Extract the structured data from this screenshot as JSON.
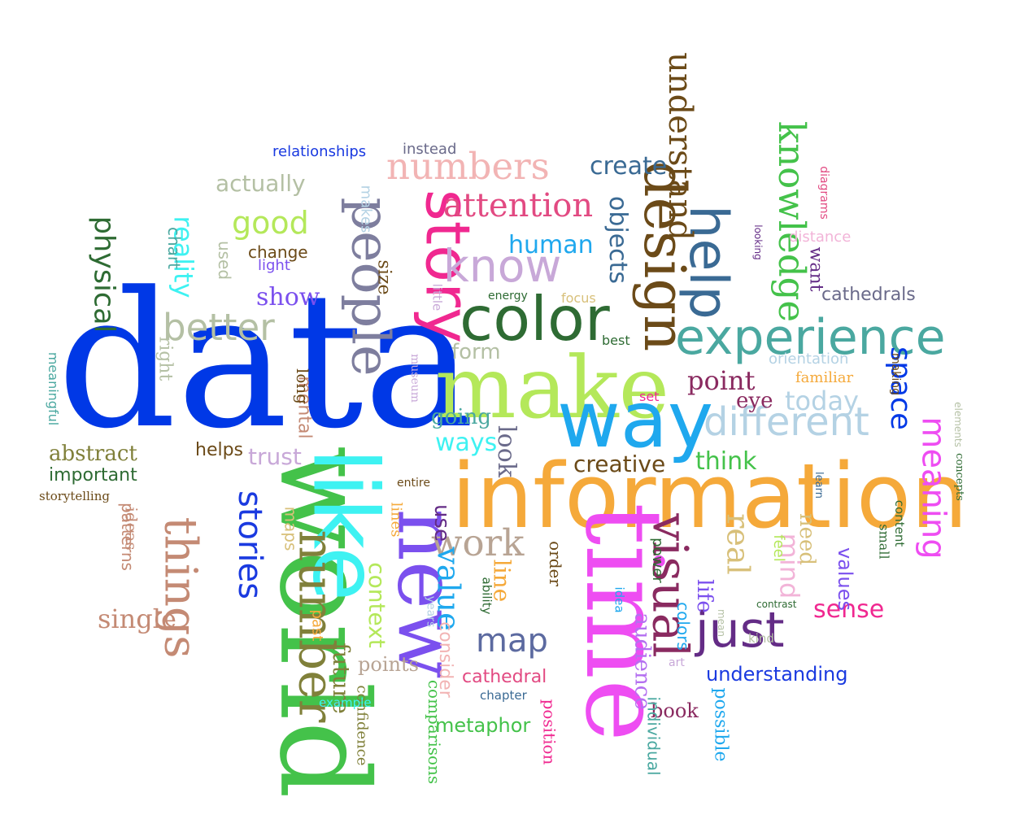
{
  "words": [
    {
      "text": "data",
      "color": "#0038e6",
      "font": "serif"
    },
    {
      "text": "world",
      "color": "#44c24a",
      "font": "serif"
    },
    {
      "text": "information",
      "color": "#f5a93a",
      "font": "sans"
    },
    {
      "text": "time",
      "color": "#ee4df2",
      "font": "serif"
    },
    {
      "text": "like",
      "color": "#3ef2f2",
      "font": "sans"
    },
    {
      "text": "new",
      "color": "#7b50ee",
      "font": "serif"
    },
    {
      "text": "make",
      "color": "#b4e85a",
      "font": "serif"
    },
    {
      "text": "way",
      "color": "#1fa8ee",
      "font": "sans"
    },
    {
      "text": "color",
      "color": "#2e6b33",
      "font": "sans"
    },
    {
      "text": "story",
      "color": "#f02890",
      "font": "sans"
    },
    {
      "text": "people",
      "color": "#7e7e9e",
      "font": "serif"
    },
    {
      "text": "number",
      "color": "#80803a",
      "font": "serif"
    },
    {
      "text": "things",
      "color": "#c48a74",
      "font": "serif"
    },
    {
      "text": "design",
      "color": "#6b4a18",
      "font": "serif"
    },
    {
      "text": "help",
      "color": "#3a6a94",
      "font": "sans"
    },
    {
      "text": "experience",
      "color": "#4aa8a0",
      "font": "sans"
    },
    {
      "text": "visual",
      "color": "#8a2a60",
      "font": "serif"
    },
    {
      "text": "just",
      "color": "#642c86",
      "font": "sans"
    },
    {
      "text": "know",
      "color": "#c8a8d8",
      "font": "sans"
    },
    {
      "text": "numbers",
      "color": "#f2b4b4",
      "font": "serif"
    },
    {
      "text": "different",
      "color": "#b4d2e4",
      "font": "sans"
    },
    {
      "text": "knowledge",
      "color": "#44c24a",
      "font": "serif"
    },
    {
      "text": "understand",
      "color": "#6b4a18",
      "font": "serif"
    },
    {
      "text": "better",
      "color": "#b4c0a4",
      "font": "sans"
    },
    {
      "text": "attention",
      "color": "#e24a82",
      "font": "serif"
    },
    {
      "text": "meaning",
      "color": "#ee4df2",
      "font": "sans"
    },
    {
      "text": "stories",
      "color": "#1a3ae0",
      "font": "sans"
    },
    {
      "text": "real",
      "color": "#d8c07a",
      "font": "serif"
    },
    {
      "text": "work",
      "color": "#b8a494",
      "font": "serif"
    },
    {
      "text": "map",
      "color": "#5c6aa0",
      "font": "sans"
    },
    {
      "text": "value",
      "color": "#1fa8ee",
      "font": "serif"
    },
    {
      "text": "good",
      "color": "#b4e85a",
      "font": "sans"
    },
    {
      "text": "reality",
      "color": "#3ef2f2",
      "font": "sans"
    },
    {
      "text": "physical",
      "color": "#2e6b33",
      "font": "sans"
    },
    {
      "text": "mind",
      "color": "#f2b4d8",
      "font": "sans"
    },
    {
      "text": "single",
      "color": "#c48a74",
      "font": "serif"
    },
    {
      "text": "point",
      "color": "#8a2a60",
      "font": "serif"
    },
    {
      "text": "today",
      "color": "#b4d2e4",
      "font": "sans"
    },
    {
      "text": "space",
      "color": "#0038e6",
      "font": "sans"
    },
    {
      "text": "objects",
      "color": "#3a6a94",
      "font": "sans"
    },
    {
      "text": "create",
      "color": "#3a6a94",
      "font": "sans"
    },
    {
      "text": "human",
      "color": "#1fa8ee",
      "font": "sans"
    },
    {
      "text": "sense",
      "color": "#f02890",
      "font": "sans"
    },
    {
      "text": "look",
      "color": "#6a6a8a",
      "font": "serif"
    },
    {
      "text": "ways",
      "color": "#3ef2f2",
      "font": "sans"
    },
    {
      "text": "think",
      "color": "#44c24a",
      "font": "sans"
    },
    {
      "text": "line",
      "color": "#f5a93a",
      "font": "serif"
    },
    {
      "text": "context",
      "color": "#b4e85a",
      "font": "sans"
    },
    {
      "text": "future",
      "color": "#80803a",
      "font": "serif"
    },
    {
      "text": "creative",
      "color": "#6b4a18",
      "font": "sans"
    },
    {
      "text": "abstract",
      "color": "#80803a",
      "font": "serif"
    },
    {
      "text": "important",
      "color": "#2e6b33",
      "font": "sans"
    },
    {
      "text": "understanding",
      "color": "#1a3ae0",
      "font": "sans"
    },
    {
      "text": "audience",
      "color": "#b470f0",
      "font": "serif"
    },
    {
      "text": "book",
      "color": "#8a2a60",
      "font": "serif"
    },
    {
      "text": "metaphor",
      "color": "#44c24a",
      "font": "sans"
    },
    {
      "text": "cathedral",
      "color": "#e24a82",
      "font": "sans"
    },
    {
      "text": "points",
      "color": "#b8a494",
      "font": "serif"
    },
    {
      "text": "trust",
      "color": "#c8a8d8",
      "font": "sans"
    },
    {
      "text": "show",
      "color": "#7b50ee",
      "font": "serif"
    },
    {
      "text": "actually",
      "color": "#b4c0a4",
      "font": "sans"
    },
    {
      "text": "use",
      "color": "#642c86",
      "font": "sans"
    },
    {
      "text": "going",
      "color": "#4aa8a0",
      "font": "serif"
    },
    {
      "text": "form",
      "color": "#b4c0a4",
      "font": "sans"
    },
    {
      "text": "eye",
      "color": "#8a2a60",
      "font": "serif"
    },
    {
      "text": "life",
      "color": "#7b50ee",
      "font": "serif"
    },
    {
      "text": "need",
      "color": "#d8c07a",
      "font": "serif"
    },
    {
      "text": "values",
      "color": "#7b50ee",
      "font": "sans"
    },
    {
      "text": "cathedrals",
      "color": "#6a6a8a",
      "font": "sans"
    },
    {
      "text": "possible",
      "color": "#1fa8ee",
      "font": "serif"
    },
    {
      "text": "individual",
      "color": "#4aa8a0",
      "font": "sans"
    },
    {
      "text": "relationships",
      "color": "#1a3ae0",
      "font": "sans"
    },
    {
      "text": "instead",
      "color": "#6a6a8a",
      "font": "sans"
    },
    {
      "text": "helps",
      "color": "#6b4a18",
      "font": "sans"
    },
    {
      "text": "consider",
      "color": "#f2b4b4",
      "font": "sans"
    },
    {
      "text": "comparisons",
      "color": "#44c24a",
      "font": "serif"
    },
    {
      "text": "position",
      "color": "#f02890",
      "font": "serif"
    },
    {
      "text": "storytelling",
      "color": "#6b4a18",
      "font": "serif"
    },
    {
      "text": "distance",
      "color": "#f2b4d8",
      "font": "sans"
    },
    {
      "text": "orientation",
      "color": "#b4d2e4",
      "font": "sans"
    },
    {
      "text": "familiar",
      "color": "#f5a93a",
      "font": "serif"
    },
    {
      "text": "want",
      "color": "#642c86",
      "font": "serif"
    },
    {
      "text": "chart",
      "color": "#4aa8a0",
      "font": "sans"
    },
    {
      "text": "maps",
      "color": "#d8c07a",
      "font": "sans"
    },
    {
      "text": "order",
      "color": "#6b4a18",
      "font": "serif"
    },
    {
      "text": "size",
      "color": "#6b4a18",
      "font": "serif"
    },
    {
      "text": "colors",
      "color": "#1fa8ee",
      "font": "sans"
    },
    {
      "text": "mental",
      "color": "#c48a74",
      "font": "sans"
    },
    {
      "text": "patterns",
      "color": "#c48a74",
      "font": "sans"
    },
    {
      "text": "ideas",
      "color": "#c48a74",
      "font": "serif"
    },
    {
      "text": "confidence",
      "color": "#80803a",
      "font": "serif"
    },
    {
      "text": "change",
      "color": "#6b4a18",
      "font": "sans"
    },
    {
      "text": "light",
      "color": "#7b50ee",
      "font": "sans"
    },
    {
      "text": "used",
      "color": "#b4c0a4",
      "font": "sans"
    },
    {
      "text": "lines",
      "color": "#f5a93a",
      "font": "serif"
    },
    {
      "text": "past",
      "color": "#f5a93a",
      "font": "sans"
    },
    {
      "text": "chapter",
      "color": "#3a6a94",
      "font": "sans"
    },
    {
      "text": "example",
      "color": "#3ef2f2",
      "font": "sans"
    },
    {
      "text": "meaningful",
      "color": "#4aa8a0",
      "font": "sans"
    },
    {
      "text": "long",
      "color": "#6b4a18",
      "font": "serif"
    },
    {
      "text": "right",
      "color": "#b4c0a4",
      "font": "serif"
    },
    {
      "text": "power",
      "color": "#2e6b33",
      "font": "sans"
    },
    {
      "text": "feel",
      "color": "#b4e85a",
      "font": "sans"
    },
    {
      "text": "ability",
      "color": "#2e6b33",
      "font": "sans"
    },
    {
      "text": "energy",
      "color": "#2e6b33",
      "font": "sans"
    },
    {
      "text": "focus",
      "color": "#d8c07a",
      "font": "sans"
    },
    {
      "text": "best",
      "color": "#2e6b33",
      "font": "sans"
    },
    {
      "text": "set",
      "color": "#f02890",
      "font": "sans"
    },
    {
      "text": "little",
      "color": "#c8a8d8",
      "font": "sans"
    },
    {
      "text": "museum",
      "color": "#c8a8d8",
      "font": "serif"
    },
    {
      "text": "makes",
      "color": "#b4d2e4",
      "font": "sans"
    },
    {
      "text": "entire",
      "color": "#6b4a18",
      "font": "sans"
    },
    {
      "text": "idea",
      "color": "#1fa8ee",
      "font": "sans"
    },
    {
      "text": "art",
      "color": "#c8a8d8",
      "font": "sans"
    },
    {
      "text": "years",
      "color": "#b4d2e4",
      "font": "sans"
    },
    {
      "text": "small",
      "color": "#2e6b33",
      "font": "serif"
    },
    {
      "text": "content",
      "color": "#2e6b33",
      "font": "sans"
    },
    {
      "text": "concepts",
      "color": "#2e6b33",
      "font": "serif"
    },
    {
      "text": "elements",
      "color": "#b4c0a4",
      "font": "sans"
    },
    {
      "text": "making",
      "color": "#6b4a18",
      "font": "sans"
    },
    {
      "text": "diagrams",
      "color": "#e24a82",
      "font": "sans"
    },
    {
      "text": "looking",
      "color": "#642c86",
      "font": "sans"
    },
    {
      "text": "kind",
      "color": "#b4c0a4",
      "font": "sans"
    },
    {
      "text": "contrast",
      "color": "#2e6b33",
      "font": "sans"
    },
    {
      "text": "mean",
      "color": "#b4c0a4",
      "font": "sans"
    },
    {
      "text": "learn",
      "color": "#3a6a94",
      "font": "sans"
    },
    {
      "text": "abstract",
      "color": "#80803a",
      "font": "serif"
    }
  ]
}
